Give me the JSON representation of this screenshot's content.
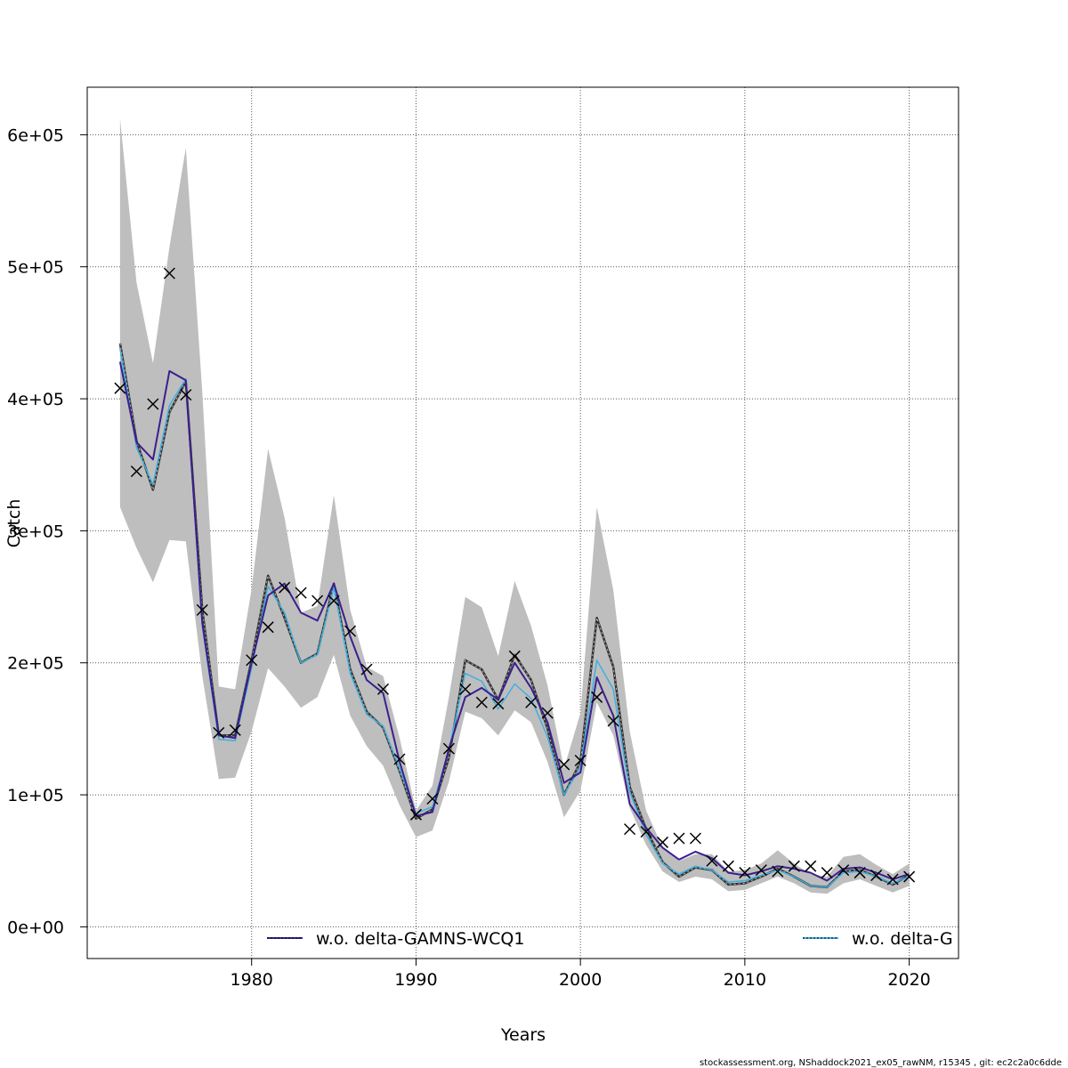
{
  "chart_data": {
    "type": "line",
    "xlabel": "Years",
    "ylabel": "Catch",
    "xlim": [
      1970,
      2023
    ],
    "ylim": [
      -24000,
      636000
    ],
    "x_ticks": [
      1980,
      1990,
      2000,
      2010,
      2020
    ],
    "x_tick_labels": [
      "1980",
      "1990",
      "2000",
      "2010",
      "2020"
    ],
    "y_ticks": [
      0,
      100000,
      200000,
      300000,
      400000,
      500000,
      600000
    ],
    "y_tick_labels": [
      "0e+00",
      "1e+05",
      "2e+05",
      "3e+05",
      "4e+05",
      "5e+05",
      "6e+05"
    ],
    "grid": true,
    "legend_position": "bottom",
    "years": [
      1972,
      1973,
      1974,
      1975,
      1976,
      1977,
      1978,
      1979,
      1980,
      1981,
      1982,
      1983,
      1984,
      1985,
      1986,
      1987,
      1988,
      1989,
      1990,
      1991,
      1992,
      1993,
      1994,
      1995,
      1996,
      1997,
      1998,
      1999,
      2000,
      2001,
      2002,
      2003,
      2004,
      2005,
      2006,
      2007,
      2008,
      2009,
      2010,
      2011,
      2012,
      2013,
      2014,
      2015,
      2016,
      2017,
      2018,
      2019,
      2020
    ],
    "band": {
      "color": "#bebebe",
      "upper": [
        612000,
        488000,
        427000,
        515000,
        590000,
        405000,
        182000,
        180000,
        256000,
        362000,
        310000,
        238000,
        243000,
        327000,
        240000,
        197000,
        190000,
        143000,
        88000,
        107000,
        174000,
        250000,
        242000,
        205000,
        262000,
        228000,
        183000,
        120000,
        162000,
        318000,
        255000,
        148000,
        88000,
        60000,
        50000,
        55000,
        55000,
        42000,
        43000,
        48000,
        58000,
        48000,
        40000,
        38000,
        53000,
        55000,
        47000,
        40000,
        48000
      ],
      "lower": [
        318000,
        287000,
        261000,
        293000,
        292000,
        190000,
        112000,
        113000,
        148000,
        196000,
        182000,
        166000,
        174000,
        206000,
        160000,
        137000,
        122000,
        92000,
        68000,
        73000,
        110000,
        163000,
        158000,
        145000,
        164000,
        155000,
        125000,
        83000,
        103000,
        170000,
        145000,
        90000,
        62000,
        42000,
        34000,
        38000,
        36000,
        27000,
        28000,
        33000,
        38000,
        33000,
        26000,
        25000,
        33000,
        36000,
        31000,
        26000,
        31000
      ]
    },
    "series": [
      {
        "name": "w.o. delta-GAMNS-WCQ1",
        "color": "#3b1f8f",
        "values": [
          428000,
          367000,
          354000,
          421000,
          414000,
          230000,
          145000,
          143000,
          200000,
          251000,
          260000,
          238000,
          232000,
          260000,
          220000,
          187000,
          177000,
          125000,
          84000,
          87000,
          135000,
          174000,
          181000,
          172000,
          200000,
          181000,
          155000,
          109000,
          117000,
          189000,
          160000,
          93000,
          75000,
          60000,
          51000,
          57000,
          52000,
          41000,
          39000,
          42000,
          46000,
          44000,
          41000,
          35000,
          44000,
          45000,
          41000,
          36000,
          40000
        ]
      },
      {
        "name": "w.o. delta-G",
        "color": "#3fb0e0",
        "values": [
          438000,
          363000,
          335000,
          395000,
          415000,
          228000,
          142000,
          141000,
          196000,
          258000,
          238000,
          200000,
          206000,
          257000,
          192000,
          161000,
          152000,
          120000,
          86000,
          91000,
          134000,
          192000,
          186000,
          165000,
          184000,
          173000,
          144000,
          100000,
          121000,
          202000,
          180000,
          102000,
          70000,
          48000,
          40000,
          46000,
          43000,
          34000,
          35000,
          39000,
          43000,
          38000,
          31000,
          30000,
          41000,
          42000,
          38000,
          33000,
          38000
        ]
      },
      {
        "name": "",
        "color": "#333333",
        "values": [
          442000,
          368000,
          331000,
          390000,
          413000,
          240000,
          145000,
          145000,
          202000,
          266000,
          234000,
          200000,
          207000,
          260000,
          195000,
          163000,
          151000,
          118000,
          82000,
          89000,
          128000,
          202000,
          195000,
          172000,
          206000,
          187000,
          150000,
          100000,
          125000,
          234000,
          197000,
          106000,
          74000,
          49000,
          38000,
          45000,
          43000,
          32000,
          33000,
          38000,
          44000,
          38000,
          31000,
          30000,
          42000,
          43000,
          38000,
          32000,
          39000
        ]
      }
    ],
    "observations": {
      "marker": "x",
      "years": [
        1972,
        1973,
        1974,
        1975,
        1976,
        1977,
        1978,
        1979,
        1980,
        1981,
        1982,
        1983,
        1984,
        1985,
        1986,
        1987,
        1988,
        1989,
        1990,
        1991,
        1992,
        1993,
        1994,
        1995,
        1996,
        1997,
        1998,
        1999,
        2000,
        2001,
        2002,
        2003,
        2004,
        2005,
        2006,
        2007,
        2008,
        2009,
        2010,
        2011,
        2012,
        2013,
        2014,
        2015,
        2016,
        2017,
        2018,
        2019,
        2020
      ],
      "values": [
        408000,
        345000,
        396000,
        495000,
        403000,
        240000,
        147000,
        149000,
        202000,
        227000,
        257000,
        253000,
        247000,
        247000,
        224000,
        195000,
        180000,
        127000,
        85000,
        97000,
        135000,
        180000,
        170000,
        169000,
        205000,
        170000,
        162000,
        123000,
        126000,
        174000,
        156000,
        74000,
        72000,
        64000,
        67000,
        67000,
        50000,
        46000,
        41000,
        43000,
        42000,
        46000,
        46000,
        41000,
        43000,
        41000,
        39000,
        36000,
        38000
      ]
    }
  },
  "legend": {
    "items": [
      {
        "label": "w.o. delta-GAMNS-WCQ1"
      },
      {
        "label": "w.o. delta-G"
      }
    ]
  },
  "footer": {
    "text": "stockassessment.org, NShaddock2021_ex05_rawNM, r15345 , git: ec2c2a0c6dde"
  }
}
